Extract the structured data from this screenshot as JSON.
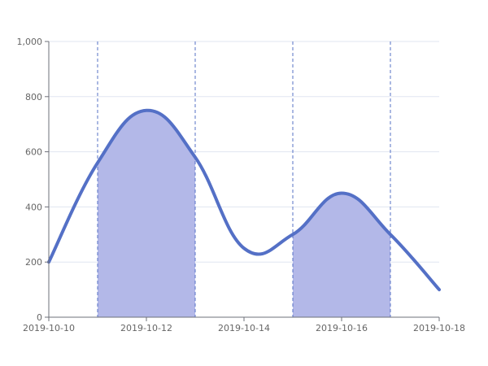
{
  "chart_data": {
    "type": "line",
    "smooth": true,
    "x": [
      "2019-10-10",
      "2019-10-11",
      "2019-10-12",
      "2019-10-13",
      "2019-10-14",
      "2019-10-15",
      "2019-10-16",
      "2019-10-17",
      "2019-10-18"
    ],
    "x_tick_labels": [
      "2019-10-10",
      "2019-10-12",
      "2019-10-14",
      "2019-10-16",
      "2019-10-18"
    ],
    "y_tick_labels": [
      "0",
      "200",
      "400",
      "600",
      "800",
      "1,000"
    ],
    "series": [
      {
        "values": [
          200,
          560,
          750,
          580,
          250,
          300,
          450,
          300,
          100
        ]
      }
    ],
    "ylim": [
      0,
      1000
    ],
    "grid": {
      "horizontal": true,
      "vertical": false
    },
    "shaded_ranges": [
      {
        "from": "2019-10-11",
        "to": "2019-10-13"
      },
      {
        "from": "2019-10-15",
        "to": "2019-10-17"
      }
    ],
    "colors": {
      "line": "#5470c6",
      "shade": "#b3b8e8",
      "boundary": "#5470c6",
      "grid": "#e0e6f1",
      "axis": "#6e7079",
      "text": "#666666"
    }
  }
}
